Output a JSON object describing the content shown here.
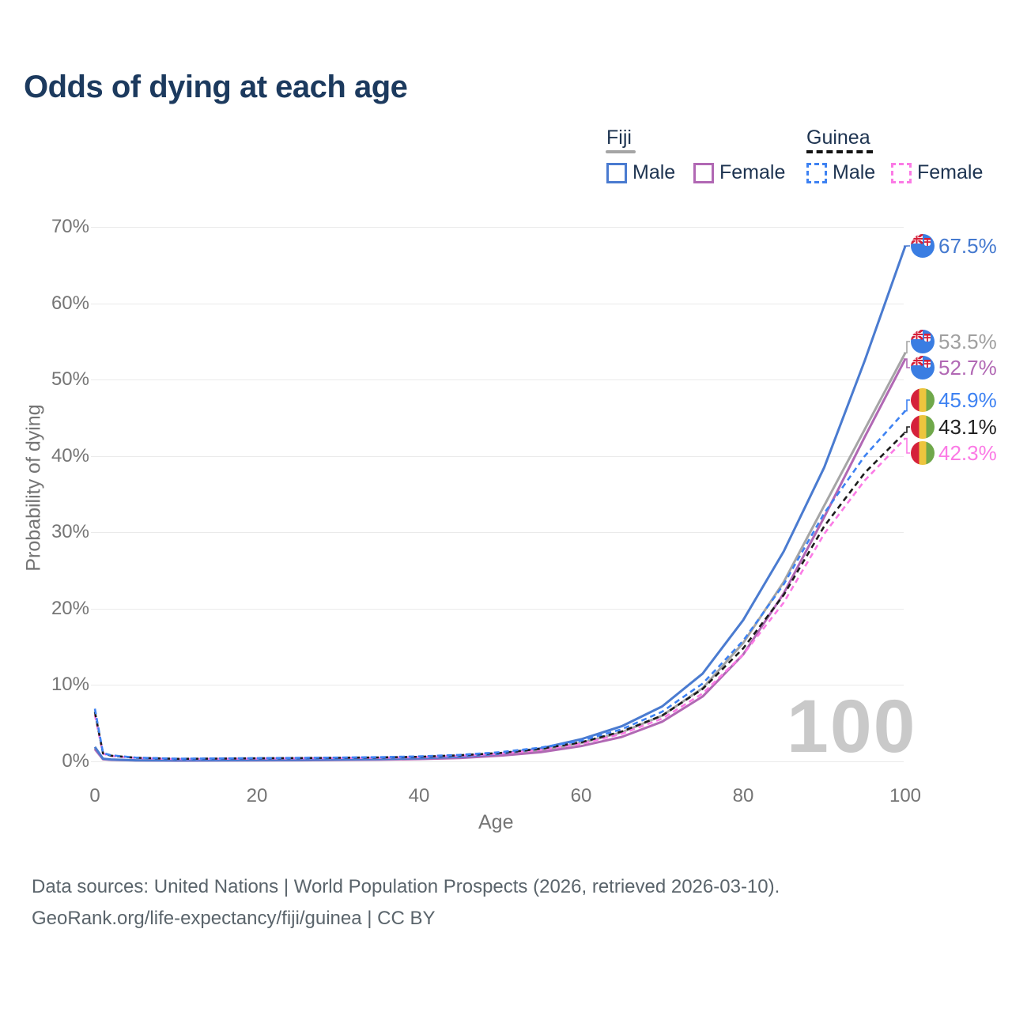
{
  "title": "Odds of dying at each age",
  "legend": {
    "groups": [
      {
        "label": "Fiji",
        "line_style": "solid",
        "underline_color": "#a5a5a5",
        "items": [
          {
            "label": "Male",
            "color": "#4a7bd0"
          },
          {
            "label": "Female",
            "color": "#b168b4"
          }
        ]
      },
      {
        "label": "Guinea",
        "line_style": "dashed",
        "underline_color": "#151515",
        "items": [
          {
            "label": "Male",
            "color": "#3e82f2"
          },
          {
            "label": "Female",
            "color": "#fb7ae5"
          }
        ]
      }
    ]
  },
  "watermark": "100",
  "footer": {
    "line1": "Data sources: United Nations | World Population Prospects (2026, retrieved 2026-03-10).",
    "line2": "GeoRank.org/life-expectancy/fiji/guinea | CC BY"
  },
  "chart_data": {
    "type": "line",
    "title": "Odds of dying at each age",
    "xlabel": "Age",
    "ylabel": "Probability of dying",
    "xlim": [
      0,
      100
    ],
    "ylim": [
      0,
      70
    ],
    "grid": "horizontal",
    "legend_position": "top-right",
    "x_ticks": [
      0,
      20,
      40,
      60,
      80,
      100
    ],
    "x_tick_labels": [
      "0",
      "20",
      "40",
      "60",
      "80",
      "100"
    ],
    "y_tick_labels": [
      "0%",
      "10%",
      "20%",
      "30%",
      "40%",
      "50%",
      "60%",
      "70%"
    ],
    "x": [
      0,
      1,
      2,
      5,
      10,
      15,
      20,
      25,
      30,
      35,
      40,
      45,
      50,
      55,
      60,
      65,
      70,
      75,
      80,
      85,
      90,
      95,
      100
    ],
    "series": [
      {
        "id": "fiji_male",
        "name": "Fiji Male",
        "country": "Fiji",
        "sex": "Male",
        "line_style": "solid",
        "color": "#4a7bd0",
        "label_color": "#4479cf",
        "flag_icon": "fiji-flag-icon",
        "end_value": 67.5,
        "end_label": "67.5%",
        "values": [
          1.9,
          0.35,
          0.25,
          0.15,
          0.12,
          0.15,
          0.18,
          0.2,
          0.25,
          0.3,
          0.4,
          0.6,
          1.0,
          1.7,
          2.9,
          4.6,
          7.2,
          11.5,
          18.5,
          27.5,
          38.5,
          52.5,
          67.5
        ]
      },
      {
        "id": "fiji_all",
        "name": "Fiji Both sexes",
        "country": "Fiji",
        "sex": "Both",
        "line_style": "solid",
        "color": "#a5a5a5",
        "label_color": "#a0a0a0",
        "flag_icon": "fiji-flag-icon",
        "end_value": 53.5,
        "end_label": "53.5%",
        "values": [
          1.75,
          0.3,
          0.22,
          0.13,
          0.1,
          0.13,
          0.15,
          0.17,
          0.21,
          0.26,
          0.34,
          0.5,
          0.85,
          1.4,
          2.4,
          3.8,
          6.0,
          9.6,
          15.5,
          23.5,
          33.5,
          43.5,
          53.5
        ]
      },
      {
        "id": "fiji_female",
        "name": "Fiji Female",
        "country": "Fiji",
        "sex": "Female",
        "line_style": "solid",
        "color": "#b168b4",
        "label_color": "#b168b4",
        "flag_icon": "fiji-flag-icon",
        "end_value": 52.7,
        "end_label": "52.7%",
        "values": [
          1.6,
          0.28,
          0.2,
          0.12,
          0.09,
          0.11,
          0.13,
          0.15,
          0.18,
          0.22,
          0.3,
          0.45,
          0.75,
          1.2,
          2.0,
          3.2,
          5.2,
          8.5,
          14.0,
          22.0,
          32.0,
          42.5,
          52.7
        ]
      },
      {
        "id": "guinea_male",
        "name": "Guinea Male",
        "country": "Guinea",
        "sex": "Male",
        "line_style": "dashed",
        "color": "#3e82f2",
        "label_color": "#3e82f2",
        "flag_icon": "guinea-flag-icon",
        "end_value": 45.9,
        "end_label": "45.9%",
        "values": [
          6.9,
          1.1,
          0.8,
          0.5,
          0.35,
          0.38,
          0.42,
          0.46,
          0.5,
          0.55,
          0.65,
          0.85,
          1.2,
          1.8,
          2.7,
          4.2,
          6.5,
          10.2,
          15.8,
          23.2,
          32.5,
          40.0,
          45.9
        ]
      },
      {
        "id": "guinea_all",
        "name": "Guinea Both sexes",
        "country": "Guinea",
        "sex": "Both",
        "line_style": "dashed",
        "color": "#1c1c1c",
        "label_color": "#222222",
        "flag_icon": "guinea-flag-icon",
        "end_value": 43.1,
        "end_label": "43.1%",
        "values": [
          6.5,
          1.05,
          0.75,
          0.48,
          0.33,
          0.36,
          0.4,
          0.43,
          0.47,
          0.52,
          0.6,
          0.8,
          1.1,
          1.65,
          2.5,
          3.9,
          6.0,
          9.5,
          14.8,
          21.8,
          30.8,
          37.8,
          43.1
        ]
      },
      {
        "id": "guinea_female",
        "name": "Guinea Female",
        "country": "Guinea",
        "sex": "Female",
        "line_style": "dashed",
        "color": "#fb7ae5",
        "label_color": "#fb7ae5",
        "flag_icon": "guinea-flag-icon",
        "end_value": 42.3,
        "end_label": "42.3%",
        "values": [
          6.1,
          1.0,
          0.7,
          0.45,
          0.3,
          0.33,
          0.37,
          0.4,
          0.44,
          0.48,
          0.56,
          0.74,
          1.0,
          1.5,
          2.3,
          3.6,
          5.6,
          8.9,
          14.0,
          20.8,
          29.8,
          36.8,
          42.3
        ]
      }
    ]
  }
}
